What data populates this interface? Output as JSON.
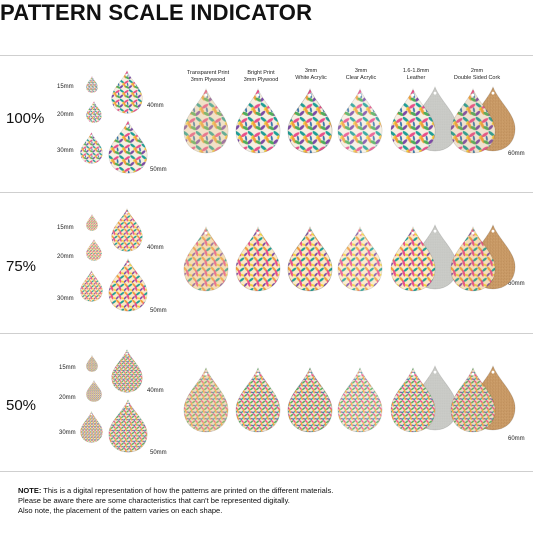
{
  "title": "PATTERN SCALE INDICATOR",
  "colors": {
    "leaf_pink": "#e94f8a",
    "leaf_orange": "#f2a13b",
    "leaf_yellow": "#f5d23e",
    "leaf_teal": "#1e9e96",
    "leaf_blue": "#2f6fa8",
    "leaf_purple": "#7b4aa6",
    "leaf_green": "#4fae5a",
    "leather_grey": "#c9cac6",
    "cork_tan": "#c99a66",
    "divider": "#cfcfcf"
  },
  "sections": [
    {
      "scale": "100%",
      "sizes": [
        "15mm",
        "20mm",
        "30mm",
        "40mm",
        "50mm"
      ],
      "large_size": "60mm"
    },
    {
      "scale": "75%",
      "sizes": [
        "15mm",
        "20mm",
        "30mm",
        "40mm",
        "50mm"
      ],
      "large_size": "60mm"
    },
    {
      "scale": "50%",
      "sizes": [
        "15mm",
        "20mm",
        "30mm",
        "40mm",
        "50mm"
      ],
      "large_size": "60mm"
    }
  ],
  "materials": [
    {
      "line1": "Transparent Print",
      "line2": "3mm Plywood"
    },
    {
      "line1": "Bright Print",
      "line2": "3mm Plywood"
    },
    {
      "line1": "3mm",
      "line2": "White Acrylic"
    },
    {
      "line1": "3mm",
      "line2": "Clear Acrylic"
    },
    {
      "line1": "1.6-1.8mm",
      "line2": "Leather"
    },
    {
      "line1": "2mm",
      "line2": "Double Sided Cork"
    }
  ],
  "note": {
    "label": "NOTE:",
    "line1": " This is a digital representation of how the patterns are printed on the different materials.",
    "line2": "Please be aware there are some characteristics that can't be represented digitally.",
    "line3": "Also note, the placement of the pattern varies on each shape."
  }
}
